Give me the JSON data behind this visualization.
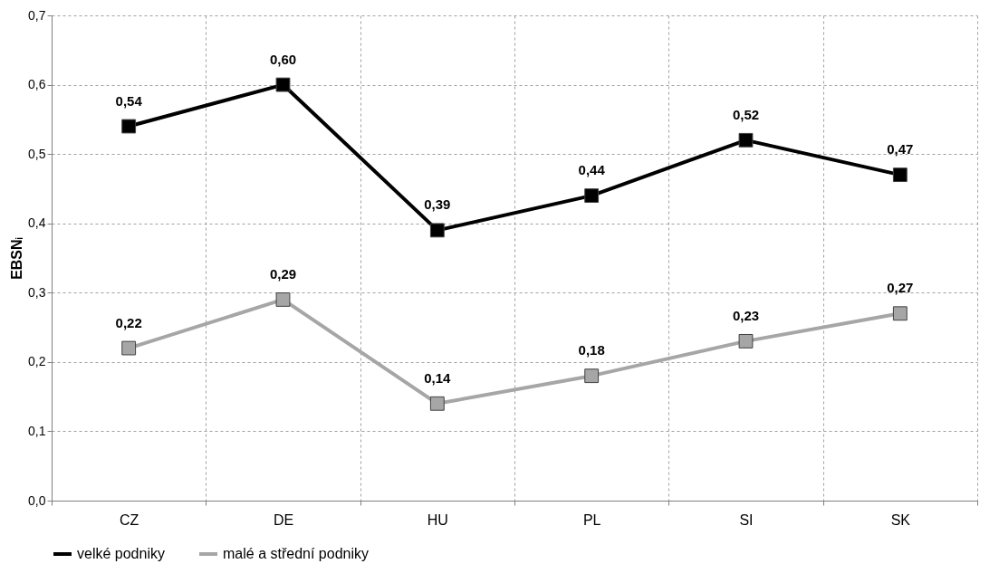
{
  "chart_data": {
    "type": "line",
    "ylabel": "EBSNᵢ",
    "categories": [
      "CZ",
      "DE",
      "HU",
      "PL",
      "SI",
      "SK"
    ],
    "series": [
      {
        "name": "velké podniky",
        "color": "#000000",
        "values": [
          0.54,
          0.6,
          0.39,
          0.44,
          0.52,
          0.47
        ],
        "value_labels": [
          "0,54",
          "0,60",
          "0,39",
          "0,44",
          "0,52",
          "0,47"
        ]
      },
      {
        "name": "malé a střední podniky",
        "color": "#a6a6a6",
        "values": [
          0.22,
          0.29,
          0.14,
          0.18,
          0.23,
          0.27
        ],
        "value_labels": [
          "0,22",
          "0,29",
          "0,14",
          "0,18",
          "0,23",
          "0,27"
        ]
      }
    ],
    "ylim": [
      0,
      0.7
    ],
    "yticks": [
      {
        "value": 0,
        "label": "0,0"
      },
      {
        "value": 0.1,
        "label": "0,1"
      },
      {
        "value": 0.2,
        "label": "0,2"
      },
      {
        "value": 0.3,
        "label": "0,3"
      },
      {
        "value": 0.4,
        "label": "0,4"
      },
      {
        "value": 0.5,
        "label": "0,5"
      },
      {
        "value": 0.6,
        "label": "0,6"
      },
      {
        "value": 0.7,
        "label": "0,7"
      }
    ],
    "grid": true,
    "legend": "bottom",
    "marker": "square",
    "line_style": "solid"
  }
}
